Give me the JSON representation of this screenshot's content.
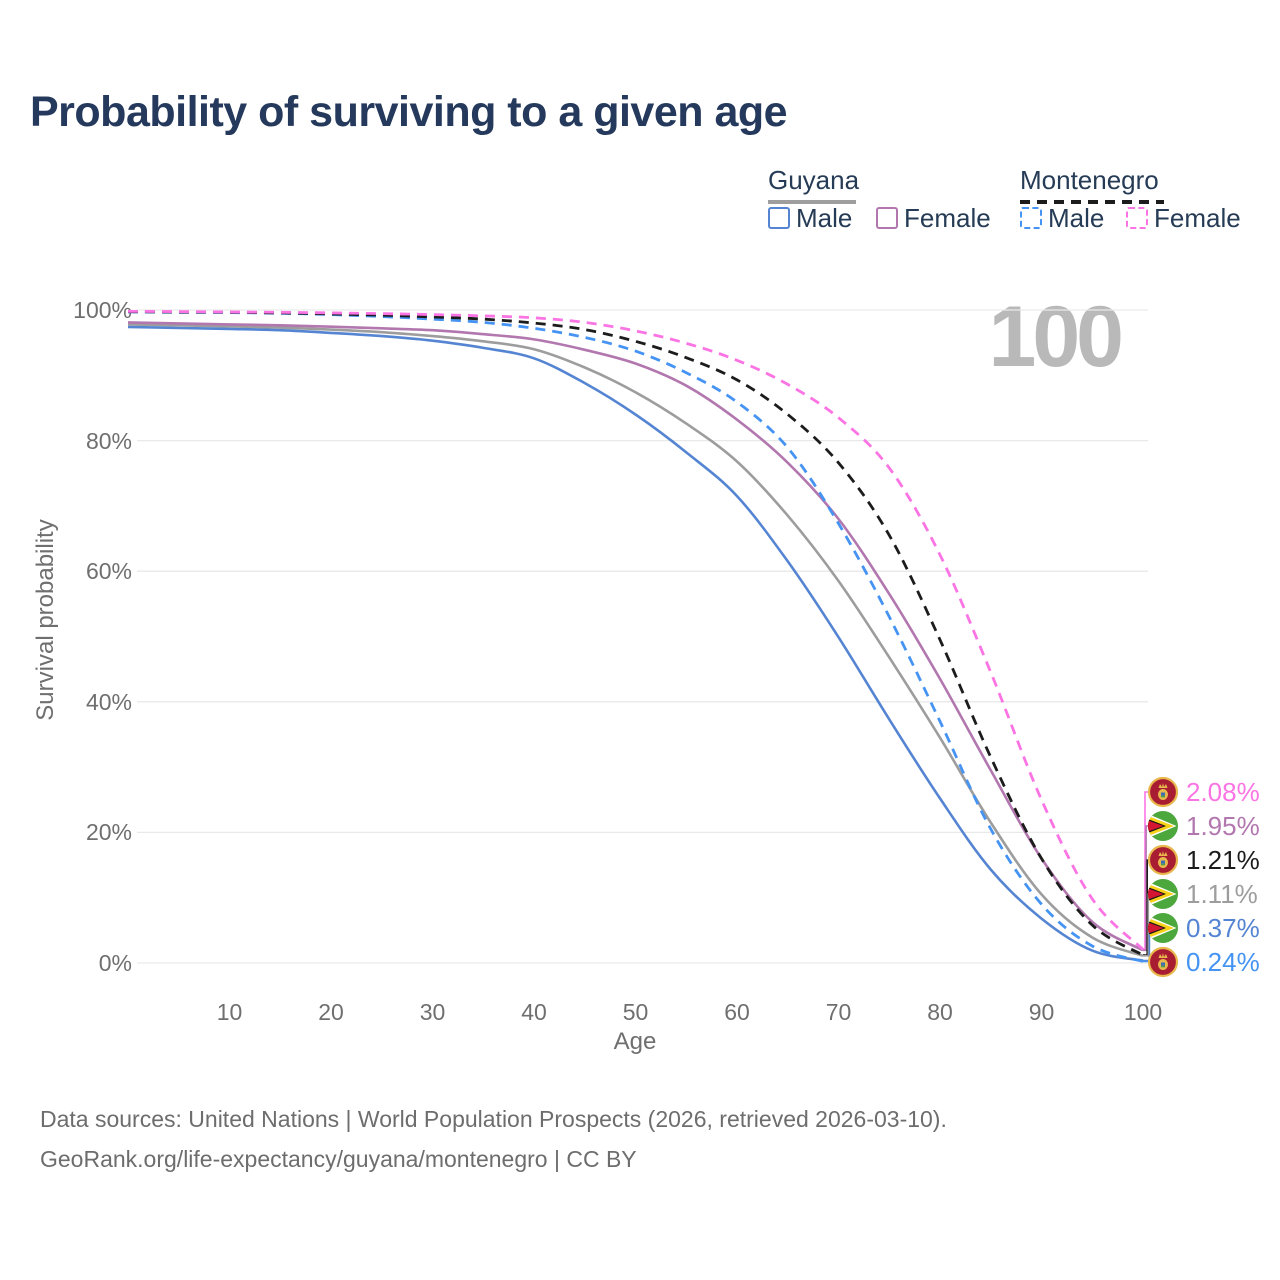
{
  "title": "Probability of surviving to a given age",
  "watermark": "100",
  "legend": {
    "groups": [
      {
        "title": "Guyana",
        "line_style": "solid",
        "title_underline_color": "#9e9e9e",
        "items": [
          {
            "label": "Male",
            "color": "#5585d2"
          },
          {
            "label": "Female",
            "color": "#b277af"
          }
        ]
      },
      {
        "title": "Montenegro",
        "line_style": "dashed",
        "title_underline_color": "#1c1c1c",
        "items": [
          {
            "label": "Male",
            "color": "#4593f2"
          },
          {
            "label": "Female",
            "color": "#fb74e4"
          }
        ]
      }
    ]
  },
  "chart_data": {
    "type": "line",
    "title": "Probability of surviving to a given age",
    "xlabel": "Age",
    "ylabel": "Survival probability",
    "xlim": [
      0,
      100
    ],
    "ylim": [
      0,
      100
    ],
    "grid": "horizontal-20pct",
    "x_ticks": [
      "10",
      "20",
      "30",
      "40",
      "50",
      "60",
      "70",
      "80",
      "90",
      "100"
    ],
    "y_ticks": [
      "0%",
      "20%",
      "40%",
      "60%",
      "80%",
      "100%"
    ],
    "x": [
      0,
      5,
      10,
      15,
      20,
      25,
      30,
      35,
      40,
      45,
      50,
      55,
      60,
      65,
      70,
      75,
      80,
      85,
      90,
      95,
      100
    ],
    "series": [
      {
        "name": "Guyana — Total",
        "country": "Guyana",
        "sex": "total",
        "color": "#9d9d9d",
        "dash": "solid",
        "values": [
          97.8,
          97.65,
          97.5,
          97.3,
          97.0,
          96.6,
          96.0,
          95.2,
          94.0,
          91.2,
          87.4,
          82.6,
          76.8,
          68.5,
          58.5,
          46.8,
          34.5,
          21.5,
          10.5,
          3.9,
          1.11
        ]
      },
      {
        "name": "Guyana — Female",
        "country": "Guyana",
        "sex": "female",
        "color": "#b277af",
        "dash": "solid",
        "values": [
          98.1,
          97.95,
          97.8,
          97.65,
          97.45,
          97.2,
          96.9,
          96.3,
          95.5,
          93.9,
          91.8,
          88.4,
          83.2,
          76.6,
          68.0,
          56.5,
          43.5,
          29.5,
          16.0,
          6.3,
          1.95
        ]
      },
      {
        "name": "Guyana — Male",
        "country": "Guyana",
        "sex": "male",
        "color": "#5585d2",
        "dash": "solid",
        "values": [
          97.4,
          97.25,
          97.1,
          96.9,
          96.5,
          96.0,
          95.3,
          94.2,
          92.6,
          88.8,
          84.0,
          78.2,
          71.5,
          61.5,
          49.9,
          37.3,
          25.2,
          14.3,
          6.8,
          1.9,
          0.37
        ]
      },
      {
        "name": "Montenegro — Male",
        "country": "Montenegro",
        "sex": "male",
        "color": "#4593f2",
        "dash": "dashed",
        "values": [
          99.7,
          99.65,
          99.6,
          99.5,
          99.3,
          99.0,
          98.6,
          98.1,
          97.2,
          95.8,
          93.7,
          90.4,
          85.9,
          78.9,
          67.3,
          53.0,
          37.0,
          20.5,
          9.0,
          2.6,
          0.24
        ]
      },
      {
        "name": "Montenegro — Total",
        "country": "Montenegro",
        "sex": "total",
        "color": "#1c1c1c",
        "dash": "dashed",
        "values": [
          99.75,
          99.7,
          99.65,
          99.55,
          99.4,
          99.2,
          98.95,
          98.6,
          98.0,
          97.0,
          95.2,
          92.7,
          89.3,
          84.0,
          76.6,
          65.5,
          49.5,
          31.5,
          16.0,
          5.8,
          1.21
        ]
      },
      {
        "name": "Montenegro — Female",
        "country": "Montenegro",
        "sex": "female",
        "color": "#fb74e4",
        "dash": "dashed",
        "values": [
          99.8,
          99.75,
          99.7,
          99.65,
          99.55,
          99.45,
          99.3,
          99.1,
          98.8,
          98.1,
          96.8,
          94.9,
          92.3,
          88.6,
          83.5,
          75.8,
          62.5,
          44.5,
          25.0,
          9.8,
          2.08
        ]
      }
    ],
    "end_labels": [
      {
        "flag": "montenegro",
        "series": "Montenegro — Female",
        "value": "2.08%",
        "color": "#fb74e4"
      },
      {
        "flag": "guyana",
        "series": "Guyana — Female",
        "value": "1.95%",
        "color": "#b277af"
      },
      {
        "flag": "montenegro",
        "series": "Montenegro — Total",
        "value": "1.21%",
        "color": "#1c1c1c"
      },
      {
        "flag": "guyana",
        "series": "Guyana — Total",
        "value": "1.11%",
        "color": "#9d9d9d"
      },
      {
        "flag": "guyana",
        "series": "Guyana — Male",
        "value": "0.37%",
        "color": "#5585d2"
      },
      {
        "flag": "montenegro",
        "series": "Montenegro — Male",
        "value": "0.24%",
        "color": "#4593f2"
      }
    ]
  },
  "icons": {
    "guyana_flag": {
      "green": "#4ca83c",
      "white": "#ffffff",
      "yellow": "#f7d117",
      "black": "#161616",
      "red": "#d31632"
    },
    "montenegro_flag": {
      "red": "#a91d32",
      "gold": "#e8b84d",
      "blue": "#3f6db5",
      "emblem_green": "#4a9b4a"
    }
  },
  "footer": {
    "line1": "Data sources: United Nations | World Population Prospects (2026, retrieved 2026-03-10).",
    "line2": "GeoRank.org/life-expectancy/guyana/montenegro | CC BY"
  }
}
